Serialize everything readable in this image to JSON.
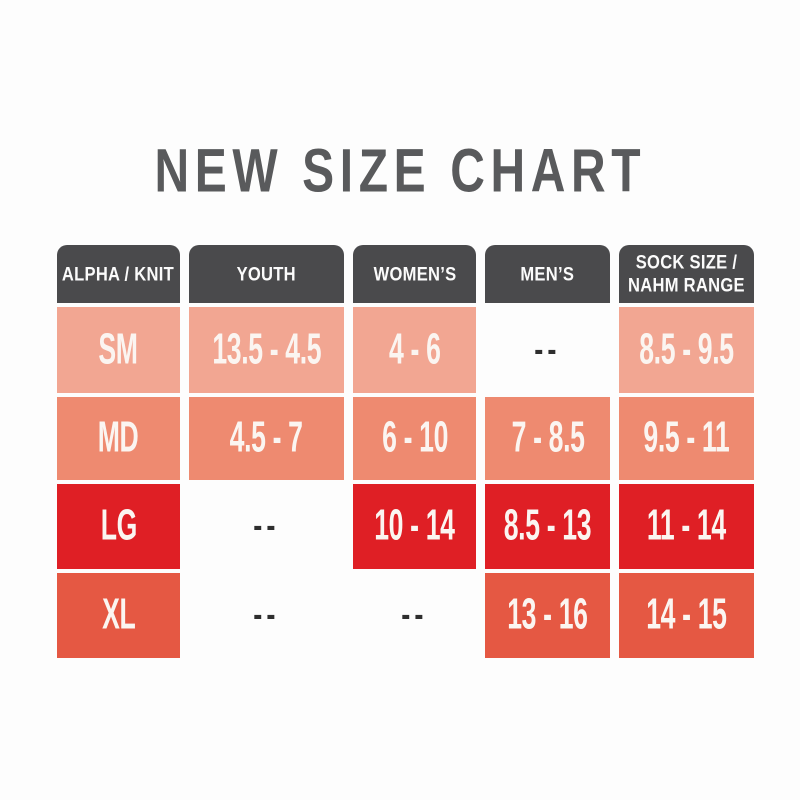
{
  "title": "NEW SIZE CHART",
  "colors": {
    "page-bg": "#fdfdfd",
    "title-color": "#595a5c",
    "header-bg": "#4a4a4c",
    "header-text": "#fbfbfb",
    "row-sm": "#f2a692",
    "row-md": "#ee8a70",
    "row-lg": "#df1f25",
    "row-xl": "#e55843",
    "cell-text": "#fbf5f1",
    "dash-color": "#2e2e2e"
  },
  "chart_data": {
    "type": "table",
    "title": "NEW SIZE CHART",
    "columns": [
      "ALPHA / KNIT",
      "YOUTH",
      "WOMEN’S",
      "MEN’S",
      "SOCK SIZE / NAHM RANGE"
    ],
    "rows": [
      {
        "label": "SM",
        "values": [
          "13.5 - 4.5",
          "4 - 6",
          "--",
          "8.5 - 9.5"
        ]
      },
      {
        "label": "MD",
        "values": [
          "4.5 - 7",
          "6 - 10",
          "7 - 8.5",
          "9.5 - 11"
        ]
      },
      {
        "label": "LG",
        "values": [
          "--",
          "10 - 14",
          "8.5 - 13",
          "11 - 14"
        ]
      },
      {
        "label": "XL",
        "values": [
          "--",
          "--",
          "13 - 16",
          "14 - 15"
        ]
      }
    ],
    "empty_marker": "--"
  }
}
